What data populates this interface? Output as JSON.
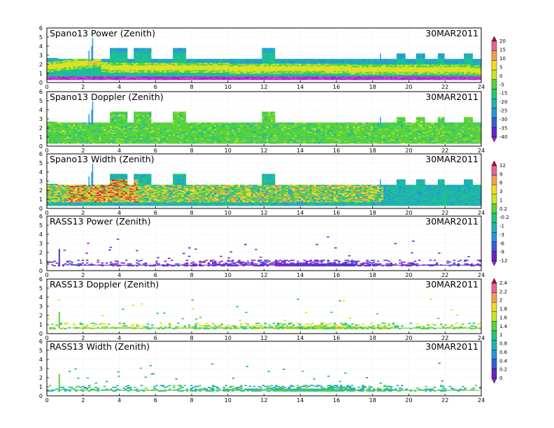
{
  "chart_data": [
    {
      "type": "heatmap",
      "title": "Spano13 Power (Zenith)",
      "date": "30MAR2011",
      "x_ticks": [
        "0",
        "2",
        "4",
        "6",
        "8",
        "10",
        "12",
        "14",
        "16",
        "18",
        "20",
        "22",
        "24"
      ],
      "y_ticks": [
        "0",
        "1",
        "2",
        "3",
        "4",
        "5",
        "6"
      ],
      "xlim": [
        0,
        24
      ],
      "ylim": [
        0,
        6
      ],
      "grid": true,
      "colorbar": [
        "20",
        "15",
        "10",
        "5",
        "0",
        "-5",
        "-15",
        "-20",
        "-25",
        "-30",
        "-35",
        "-40"
      ],
      "colorbar_group": 0,
      "pattern": "spano-power"
    },
    {
      "type": "heatmap",
      "title": "Spano13 Doppler (Zenith)",
      "date": "30MAR2011",
      "x_ticks": [
        "0",
        "2",
        "4",
        "6",
        "8",
        "10",
        "12",
        "14",
        "16",
        "18",
        "20",
        "22",
        "24"
      ],
      "y_ticks": [
        "0",
        "1",
        "2",
        "3",
        "4",
        "5",
        "6"
      ],
      "xlim": [
        0,
        24
      ],
      "ylim": [
        0,
        6
      ],
      "grid": true,
      "pattern": "spano-doppler"
    },
    {
      "type": "heatmap",
      "title": "Spano13 Width (Zenith)",
      "date": "30MAR2011",
      "x_ticks": [
        "0",
        "2",
        "4",
        "6",
        "8",
        "10",
        "12",
        "14",
        "16",
        "18",
        "20",
        "22",
        "24"
      ],
      "y_ticks": [
        "0",
        "1",
        "2",
        "3",
        "4",
        "5",
        "6"
      ],
      "xlim": [
        0,
        24
      ],
      "ylim": [
        0,
        6
      ],
      "grid": true,
      "colorbar": [
        "12",
        "9",
        "6",
        "3",
        "1",
        "0.2",
        "-0.2",
        "-1",
        "-3",
        "-6",
        "-9",
        "-12"
      ],
      "colorbar_group": 1,
      "pattern": "spano-width"
    },
    {
      "type": "heatmap",
      "title": "RASS13 Power (Zenith)",
      "date": "30MAR2011",
      "x_ticks": [
        "0",
        "2",
        "4",
        "6",
        "8",
        "10",
        "12",
        "14",
        "16",
        "18",
        "20",
        "22",
        "24"
      ],
      "y_ticks": [
        "0",
        "1",
        "2",
        "3",
        "4",
        "5",
        "6"
      ],
      "xlim": [
        0,
        24
      ],
      "ylim": [
        0,
        6
      ],
      "grid": true,
      "pattern": "rass-power"
    },
    {
      "type": "heatmap",
      "title": "RASS13 Doppler (Zenith)",
      "date": "30MAR2011",
      "x_ticks": [
        "0",
        "2",
        "4",
        "6",
        "8",
        "10",
        "12",
        "14",
        "16",
        "18",
        "20",
        "22",
        "24"
      ],
      "y_ticks": [
        "0",
        "1",
        "2",
        "3",
        "4",
        "5",
        "6"
      ],
      "xlim": [
        0,
        24
      ],
      "ylim": [
        0,
        6
      ],
      "grid": true,
      "colorbar": [
        "2.4",
        "2.2",
        "2",
        "1.8",
        "1.6",
        "1.4",
        "1",
        "0.8",
        "0.6",
        "0.4",
        "0.2",
        "0"
      ],
      "colorbar_group": 2,
      "pattern": "rass-doppler"
    },
    {
      "type": "heatmap",
      "title": "RASS13 Width (Zenith)",
      "date": "30MAR2011",
      "x_ticks": [
        "0",
        "2",
        "4",
        "6",
        "8",
        "10",
        "12",
        "14",
        "16",
        "18",
        "20",
        "22",
        "24"
      ],
      "y_ticks": [
        "0",
        "1",
        "2",
        "3",
        "4",
        "5",
        "6"
      ],
      "xlim": [
        0,
        24
      ],
      "ylim": [
        0,
        6
      ],
      "grid": true,
      "pattern": "rass-width"
    }
  ],
  "colors": {
    "colorbar_fills": [
      "#c8003c",
      "#e86496",
      "#f0a050",
      "#f0dc28",
      "#c8e628",
      "#5ad23c",
      "#1ec878",
      "#1eb4b4",
      "#2896dc",
      "#3c5adc",
      "#6428c8",
      "#a028c8"
    ],
    "grid": "#c8c8c8",
    "frame": "#000000"
  }
}
